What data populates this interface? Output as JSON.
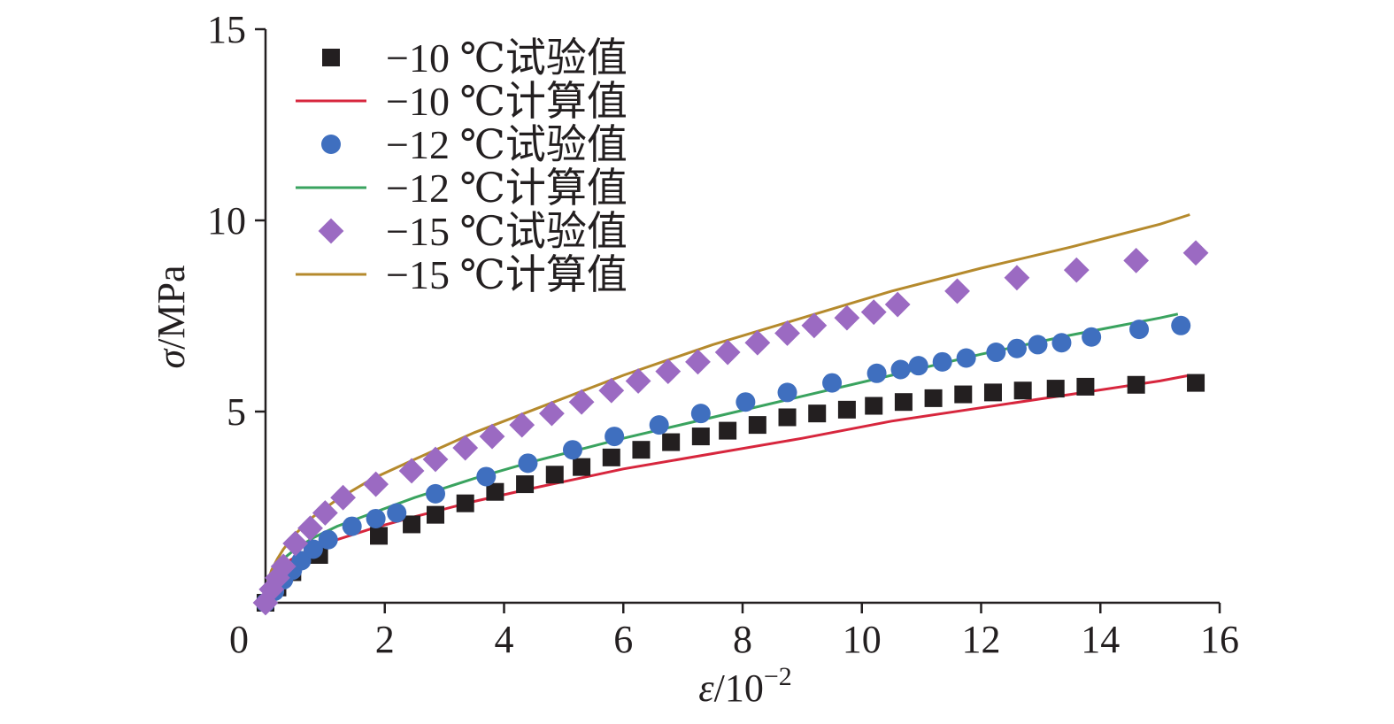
{
  "chart_data": {
    "type": "scatter",
    "xlabel_italic": "ε",
    "xlabel_rest": "/10",
    "xlabel_sup": "−2",
    "ylabel_italic": "σ",
    "ylabel_rest": "/MPa",
    "xlim": [
      0,
      16
    ],
    "ylim": [
      0,
      15
    ],
    "x_ticks": [
      0,
      2,
      4,
      6,
      8,
      10,
      12,
      14,
      16
    ],
    "x_tick_labels": [
      "0",
      "2",
      "4",
      "6",
      "8",
      "10",
      "12",
      "14",
      "16"
    ],
    "y_ticks": [
      5,
      10,
      15
    ],
    "y_tick_labels": [
      "5",
      "10",
      "15"
    ],
    "grid": false,
    "legend_position": "top-left",
    "series": [
      {
        "name": "−10 ℃试验值",
        "kind": "markers",
        "marker": "square",
        "color": "#231f20",
        "x": [
          0,
          0.2,
          0.45,
          0.9,
          1.9,
          2.45,
          2.85,
          3.35,
          3.85,
          4.35,
          4.85,
          5.3,
          5.8,
          6.3,
          6.8,
          7.3,
          7.75,
          8.25,
          8.75,
          9.25,
          9.75,
          10.2,
          10.7,
          11.2,
          11.7,
          12.2,
          12.7,
          13.25,
          13.75,
          14.6,
          15.6
        ],
        "y": [
          0,
          0.4,
          0.8,
          1.25,
          1.75,
          2.05,
          2.3,
          2.6,
          2.9,
          3.1,
          3.35,
          3.55,
          3.8,
          4.0,
          4.2,
          4.35,
          4.5,
          4.65,
          4.85,
          4.95,
          5.05,
          5.15,
          5.25,
          5.35,
          5.45,
          5.5,
          5.55,
          5.6,
          5.65,
          5.7,
          5.75
        ]
      },
      {
        "name": "−10 ℃计算值",
        "kind": "line",
        "color": "#d7263d",
        "x": [
          0,
          0.05,
          0.1,
          0.2,
          0.3,
          0.5,
          0.8,
          1.2,
          1.8,
          2.5,
          3.5,
          4.5,
          6,
          7.5,
          9,
          10.5,
          12,
          13.5,
          15,
          15.5
        ],
        "y": [
          0,
          0.45,
          0.65,
          0.85,
          1.0,
          1.2,
          1.45,
          1.65,
          1.95,
          2.25,
          2.65,
          3.0,
          3.5,
          3.9,
          4.3,
          4.75,
          5.1,
          5.45,
          5.8,
          5.95
        ]
      },
      {
        "name": "−12 ℃试验值",
        "kind": "markers",
        "marker": "circle",
        "color": "#3f6fbf",
        "x": [
          0,
          0.15,
          0.3,
          0.45,
          0.6,
          0.8,
          1.05,
          1.45,
          1.85,
          2.2,
          2.85,
          3.7,
          4.4,
          5.15,
          5.85,
          6.6,
          7.3,
          8.05,
          8.75,
          9.5,
          10.25,
          10.65,
          10.95,
          11.35,
          11.75,
          12.25,
          12.6,
          12.95,
          13.35,
          13.85,
          14.65,
          15.35
        ],
        "y": [
          0,
          0.3,
          0.6,
          0.85,
          1.1,
          1.4,
          1.65,
          2.0,
          2.2,
          2.35,
          2.85,
          3.3,
          3.65,
          4.0,
          4.35,
          4.65,
          4.95,
          5.25,
          5.5,
          5.75,
          6.0,
          6.1,
          6.2,
          6.3,
          6.4,
          6.55,
          6.65,
          6.75,
          6.8,
          6.95,
          7.15,
          7.25
        ]
      },
      {
        "name": "−12 ℃计算值",
        "kind": "line",
        "color": "#3aa35f",
        "x": [
          0,
          0.05,
          0.1,
          0.2,
          0.3,
          0.5,
          0.8,
          1.2,
          1.8,
          2.5,
          3.5,
          4.5,
          6,
          7.5,
          9,
          10.5,
          12,
          13.5,
          15,
          15.3
        ],
        "y": [
          0,
          0.55,
          0.75,
          1.0,
          1.15,
          1.4,
          1.7,
          2.0,
          2.35,
          2.75,
          3.25,
          3.7,
          4.3,
          4.85,
          5.4,
          5.95,
          6.5,
          7.0,
          7.45,
          7.55
        ]
      },
      {
        "name": "−15 ℃试验值",
        "kind": "markers",
        "marker": "diamond",
        "color": "#9b6ac2",
        "x": [
          0,
          0.1,
          0.2,
          0.3,
          0.5,
          0.75,
          1.0,
          1.3,
          1.85,
          2.45,
          2.85,
          3.35,
          3.8,
          4.3,
          4.8,
          5.3,
          5.8,
          6.25,
          6.75,
          7.25,
          7.75,
          8.25,
          8.75,
          9.2,
          9.75,
          10.2,
          10.6,
          11.6,
          12.6,
          13.6,
          14.6,
          15.6
        ],
        "y": [
          0,
          0.35,
          0.65,
          0.95,
          1.55,
          1.95,
          2.35,
          2.75,
          3.1,
          3.45,
          3.75,
          4.05,
          4.35,
          4.65,
          4.95,
          5.25,
          5.55,
          5.8,
          6.05,
          6.3,
          6.55,
          6.8,
          7.05,
          7.25,
          7.45,
          7.6,
          7.8,
          8.15,
          8.5,
          8.7,
          8.95,
          9.15
        ]
      },
      {
        "name": "−15 ℃计算值",
        "kind": "line",
        "color": "#b58a2d",
        "x": [
          0,
          0.05,
          0.1,
          0.2,
          0.3,
          0.5,
          0.8,
          1.2,
          1.8,
          2.5,
          3.5,
          4.5,
          6,
          7.5,
          9,
          10.5,
          12,
          13.5,
          15,
          15.5
        ],
        "y": [
          0,
          0.6,
          0.85,
          1.15,
          1.4,
          1.8,
          2.25,
          2.7,
          3.25,
          3.75,
          4.45,
          5.05,
          5.95,
          6.75,
          7.45,
          8.15,
          8.75,
          9.3,
          9.9,
          10.15
        ]
      }
    ]
  }
}
